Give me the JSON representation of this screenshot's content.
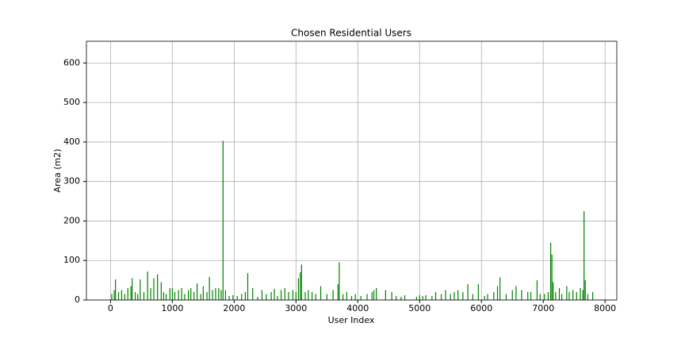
{
  "chart_data": {
    "type": "bar",
    "title": "Chosen Residential Users",
    "x_label": "User Index",
    "y_label": "Area (m2)",
    "x": [
      20,
      60,
      80,
      130,
      180,
      230,
      280,
      330,
      350,
      400,
      440,
      480,
      540,
      600,
      650,
      700,
      760,
      820,
      860,
      900,
      960,
      1000,
      1040,
      1100,
      1150,
      1200,
      1260,
      1300,
      1350,
      1400,
      1460,
      1500,
      1560,
      1600,
      1650,
      1700,
      1750,
      1790,
      1820,
      1860,
      1920,
      1980,
      2050,
      2120,
      2180,
      2220,
      2300,
      2380,
      2450,
      2520,
      2600,
      2650,
      2700,
      2760,
      2820,
      2880,
      2950,
      3000,
      3040,
      3070,
      3090,
      3150,
      3200,
      3260,
      3320,
      3400,
      3500,
      3600,
      3680,
      3700,
      3760,
      3820,
      3900,
      3960,
      4050,
      4150,
      4230,
      4260,
      4300,
      4450,
      4550,
      4620,
      4700,
      4760,
      4950,
      5000,
      5050,
      5100,
      5200,
      5260,
      5350,
      5420,
      5500,
      5560,
      5620,
      5700,
      5780,
      5860,
      5950,
      6050,
      6100,
      6200,
      6260,
      6300,
      6400,
      6500,
      6560,
      6650,
      6750,
      6800,
      6900,
      6950,
      7020,
      7080,
      7120,
      7140,
      7160,
      7200,
      7260,
      7300,
      7380,
      7420,
      7480,
      7540,
      7600,
      7640,
      7660,
      7680,
      7720,
      7800
    ],
    "values": [
      15,
      25,
      52,
      20,
      25,
      15,
      30,
      35,
      55,
      20,
      15,
      52,
      20,
      72,
      30,
      55,
      65,
      45,
      20,
      15,
      30,
      30,
      20,
      25,
      30,
      15,
      25,
      30,
      20,
      42,
      15,
      35,
      20,
      58,
      25,
      30,
      30,
      25,
      403,
      25,
      10,
      12,
      10,
      15,
      20,
      68,
      30,
      8,
      25,
      15,
      20,
      28,
      10,
      25,
      30,
      20,
      25,
      20,
      55,
      70,
      90,
      20,
      25,
      20,
      15,
      35,
      15,
      25,
      40,
      95,
      15,
      20,
      10,
      15,
      10,
      15,
      20,
      25,
      30,
      25,
      20,
      10,
      8,
      12,
      8,
      12,
      10,
      12,
      10,
      20,
      15,
      25,
      15,
      20,
      25,
      20,
      40,
      15,
      40,
      10,
      15,
      20,
      35,
      57,
      15,
      25,
      35,
      25,
      20,
      20,
      50,
      15,
      15,
      20,
      145,
      115,
      45,
      20,
      30,
      15,
      35,
      20,
      25,
      20,
      30,
      25,
      225,
      50,
      15,
      20
    ],
    "color": "#008000",
    "xlim": [
      -390,
      8190
    ],
    "xticks": [
      0,
      1000,
      2000,
      3000,
      4000,
      5000,
      6000,
      7000,
      8000
    ],
    "ylim": [
      0,
      655
    ],
    "yticks": [
      0,
      100,
      200,
      300,
      400,
      500,
      600
    ],
    "grid": true
  }
}
